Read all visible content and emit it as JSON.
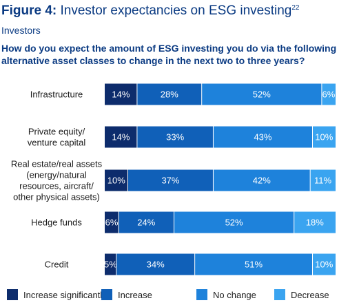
{
  "figure": {
    "label": "Figure 4:",
    "text": "Investor expectancies on ESG investing",
    "footnote": "22"
  },
  "subtitle": "Investors",
  "question": "How do you expect the amount of ESG investing you do via the following alternative asset classes to change in the next two to three years?",
  "colors": {
    "increase_significantly": "#0d2c6c",
    "increase": "#1060b8",
    "no_change": "#1e82db",
    "decrease": "#3aa4f0"
  },
  "chart_data": {
    "type": "bar",
    "orientation": "horizontal",
    "stacked": true,
    "unit": "%",
    "categories": [
      [
        "Infrastructure"
      ],
      [
        "Private equity/",
        "venture capital"
      ],
      [
        "Real estate/real assets",
        "(energy/natural",
        "resources, aircraft/",
        "other physical assets)"
      ],
      [
        "Hedge funds"
      ],
      [
        "Credit"
      ]
    ],
    "series": [
      {
        "name": "Increase significantly",
        "values": [
          14,
          14,
          10,
          6,
          5
        ]
      },
      {
        "name": "Increase",
        "values": [
          28,
          33,
          37,
          24,
          34
        ]
      },
      {
        "name": "No change",
        "values": [
          52,
          43,
          42,
          52,
          51
        ]
      },
      {
        "name": "Decrease",
        "values": [
          6,
          10,
          11,
          18,
          10
        ]
      }
    ],
    "xlim": [
      0,
      100
    ],
    "grid": false,
    "legend": "bottom"
  }
}
